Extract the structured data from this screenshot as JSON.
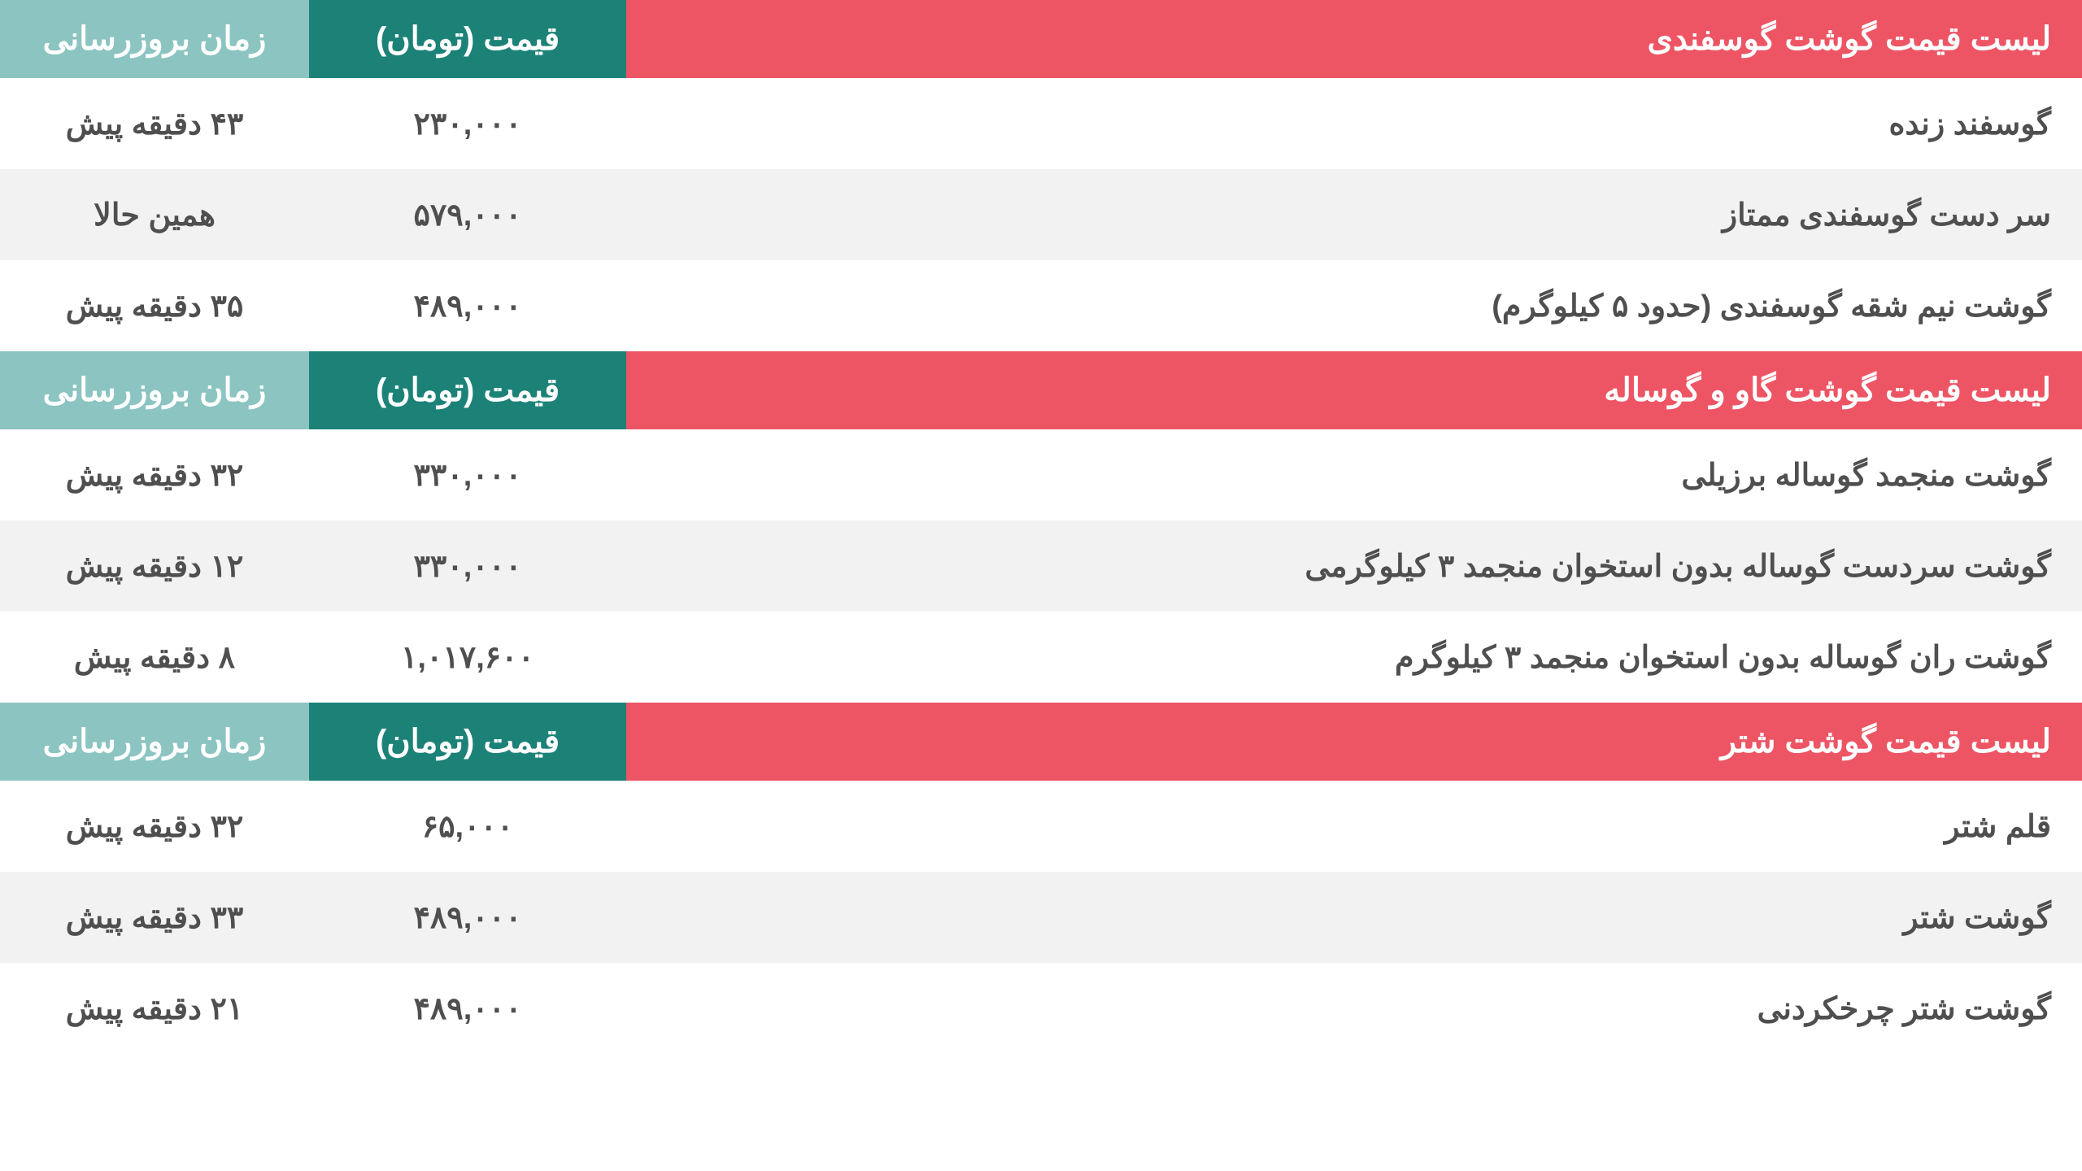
{
  "colors": {
    "header_title_bg": "#ed5565",
    "header_price_bg": "#1c8278",
    "header_time_bg": "#8bc4c1",
    "row_odd_bg": "#ffffff",
    "row_even_bg": "#f2f2f2",
    "text_color": "#4f4f4f",
    "header_text": "#ffffff"
  },
  "sections": [
    {
      "title": "لیست قیمت گوشت گوسفندی",
      "price_header": "قیمت (تومان)",
      "time_header": "زمان بروزرسانی",
      "rows": [
        {
          "name": "گوسفند زنده",
          "price": "۲۳۰,۰۰۰",
          "time": "۴۳ دقیقه پیش"
        },
        {
          "name": "سر دست گوسفندی ممتاز",
          "price": "۵۷۹,۰۰۰",
          "time": "همین حالا"
        },
        {
          "name": "گوشت نیم شقه گوسفندی (حدود ۵ کیلوگرم)",
          "price": "۴۸۹,۰۰۰",
          "time": "۳۵ دقیقه پیش"
        }
      ]
    },
    {
      "title": "لیست قیمت گوشت گاو و گوساله",
      "price_header": "قیمت (تومان)",
      "time_header": "زمان بروزرسانی",
      "rows": [
        {
          "name": "گوشت منجمد گوساله برزیلی",
          "price": "۳۳۰,۰۰۰",
          "time": "۳۲ دقیقه پیش"
        },
        {
          "name": "گوشت سردست گوساله بدون استخوان منجمد ۳ کیلوگرمی",
          "price": "۳۳۰,۰۰۰",
          "time": "۱۲ دقیقه پیش"
        },
        {
          "name": "گوشت ران گوساله بدون استخوان منجمد ۳ کیلوگرم",
          "price": "۱,۰۱۷,۶۰۰",
          "time": "۸ دقیقه پیش"
        }
      ]
    },
    {
      "title": "لیست قیمت گوشت شتر",
      "price_header": "قیمت (تومان)",
      "time_header": "زمان بروزرسانی",
      "rows": [
        {
          "name": "قلم شتر",
          "price": "۶۵,۰۰۰",
          "time": "۳۲ دقیقه پیش"
        },
        {
          "name": "گوشت شتر",
          "price": "۴۸۹,۰۰۰",
          "time": "۳۳ دقیقه پیش"
        },
        {
          "name": "گوشت شتر چرخکردنی",
          "price": "۴۸۹,۰۰۰",
          "time": "۲۱ دقیقه پیش"
        }
      ]
    }
  ]
}
